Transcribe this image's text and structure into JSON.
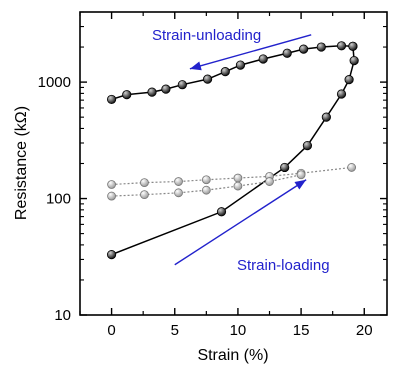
{
  "chart_data": {
    "type": "line",
    "xlabel": "Strain (%)",
    "ylabel": "Resistance (kΩ)",
    "xlim": [
      -2.5,
      21.8
    ],
    "ylim": [
      10,
      4000
    ],
    "y_scale": "log",
    "x_ticks": [
      0,
      5,
      10,
      15,
      20
    ],
    "x_tick_labels": [
      "0",
      "5",
      "10",
      "15",
      "20"
    ],
    "y_ticks": [
      10,
      100,
      1000
    ],
    "y_tick_labels": [
      "10",
      "100",
      "1000"
    ],
    "grid": false,
    "series": [
      {
        "color": "#000000",
        "marker_color": "#1a1a1a",
        "line_style": "solid",
        "x": [
          0,
          8.7,
          13.7,
          15.5,
          17.0,
          18.2,
          18.8,
          19.2,
          19.1
        ],
        "y": [
          33,
          77,
          185,
          285,
          500,
          790,
          1050,
          1530,
          2030
        ]
      },
      {
        "color": "#000000",
        "marker_color": "#1a1a1a",
        "line_style": "solid",
        "x": [
          19.1,
          18.2,
          16.6,
          15.2,
          13.9,
          12.0,
          10.2,
          9.0,
          7.6,
          5.6,
          4.3,
          3.2,
          1.2,
          0
        ],
        "y": [
          2030,
          2050,
          2000,
          1920,
          1770,
          1580,
          1400,
          1230,
          1060,
          950,
          870,
          820,
          780,
          710
        ]
      },
      {
        "color": "#888888",
        "marker_color": "#bdbdbd",
        "line_style": "dotted",
        "x": [
          0,
          2.6,
          5.3,
          7.5,
          10.0,
          12.5,
          15.0,
          19.0
        ],
        "y": [
          132,
          137,
          140,
          145,
          150,
          155,
          165,
          185
        ]
      },
      {
        "color": "#888888",
        "marker_color": "#bdbdbd",
        "line_style": "dotted",
        "x": [
          0,
          2.6,
          5.3,
          7.5,
          10.0,
          12.5,
          15.0
        ],
        "y": [
          105,
          108,
          112,
          118,
          128,
          140,
          160
        ]
      }
    ],
    "annotations": [
      {
        "text": "Strain-unloading",
        "color": "#2222cc"
      },
      {
        "text": "Strain-loading",
        "color": "#2222cc"
      }
    ],
    "arrows": [
      {
        "from": [
          15.8,
          2550
        ],
        "to": [
          6.2,
          1300
        ],
        "color": "#2222cc"
      },
      {
        "from": [
          5.0,
          27
        ],
        "to": [
          15.4,
          145
        ],
        "color": "#2222cc"
      }
    ]
  }
}
